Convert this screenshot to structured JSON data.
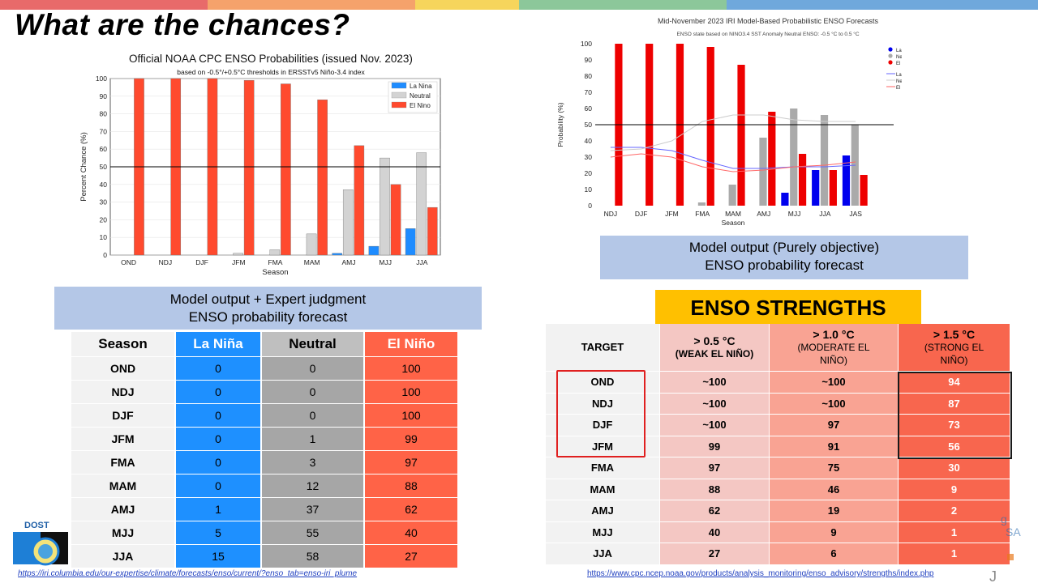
{
  "slide": {
    "title": "What are the chances?",
    "stripe_colors": [
      "#e86a6a",
      "#f5a26b",
      "#f6d55c",
      "#8cc79a",
      "#6fa8dc"
    ]
  },
  "cpc": {
    "caption_line1": "Model output + Expert judgment",
    "caption_line2": "ENSO probability forecast",
    "table_headers": [
      "Season",
      "La Niña",
      "Neutral",
      "El Niño"
    ],
    "rows": [
      [
        "OND",
        "0",
        "0",
        "100"
      ],
      [
        "NDJ",
        "0",
        "0",
        "100"
      ],
      [
        "DJF",
        "0",
        "0",
        "100"
      ],
      [
        "JFM",
        "0",
        "1",
        "99"
      ],
      [
        "FMA",
        "0",
        "3",
        "97"
      ],
      [
        "MAM",
        "0",
        "12",
        "88"
      ],
      [
        "AMJ",
        "1",
        "37",
        "62"
      ],
      [
        "MJJ",
        "5",
        "55",
        "40"
      ],
      [
        "JJA",
        "15",
        "58",
        "27"
      ]
    ],
    "link": "https://iri.columbia.edu/our-expertise/climate/forecasts/enso/current/?enso_tab=enso-iri_plume"
  },
  "iri": {
    "caption_line1": "Model output (Purely objective)",
    "caption_line2": "ENSO probability forecast"
  },
  "strengths": {
    "title": "ENSO STRENGTHS",
    "headers": [
      [
        "TARGET"
      ],
      [
        "> 0.5 °C",
        "(WEAK EL NIÑO)"
      ],
      [
        "> 1.0 °C",
        "(MODERATE EL",
        "NIÑO)"
      ],
      [
        "> 1.5 °C",
        "(STRONG EL",
        "NIÑO)"
      ]
    ],
    "rows": [
      [
        "OND",
        "~100",
        "~100",
        "94"
      ],
      [
        "NDJ",
        "~100",
        "~100",
        "87"
      ],
      [
        "DJF",
        "~100",
        "97",
        "73"
      ],
      [
        "JFM",
        "99",
        "91",
        "56"
      ],
      [
        "FMA",
        "97",
        "75",
        "30"
      ],
      [
        "MAM",
        "88",
        "46",
        "9"
      ],
      [
        "AMJ",
        "62",
        "19",
        "2"
      ],
      [
        "MJJ",
        "40",
        "9",
        "1"
      ],
      [
        "JJA",
        "27",
        "6",
        "1"
      ]
    ],
    "link": "https://www.cpc.ncep.noaa.gov/products/analysis_monitoring/enso_advisory/strengths/index.php"
  },
  "logos": {
    "dost_label": "DOST"
  },
  "chart_data": [
    {
      "type": "bar",
      "title": "Official NOAA CPC ENSO Probabilities (issued Nov. 2023)",
      "subtitle": "based on -0.5°/+0.5°C thresholds in ERSSTv5 Niño-3.4 index",
      "xlabel": "Season",
      "ylabel": "Percent Chance (%)",
      "ylim": [
        0,
        100
      ],
      "yticks": [
        0,
        10,
        20,
        30,
        40,
        50,
        60,
        70,
        80,
        90,
        100
      ],
      "reference_line": 50,
      "legend_position": "top-right",
      "categories": [
        "OND",
        "NDJ",
        "DJF",
        "JFM",
        "FMA",
        "MAM",
        "AMJ",
        "MJJ",
        "JJA"
      ],
      "series": [
        {
          "name": "La Nina",
          "color": "#1e8cff",
          "values": [
            0,
            0,
            0,
            0,
            0,
            0,
            1,
            5,
            15
          ]
        },
        {
          "name": "Neutral",
          "color": "#d3d3d3",
          "values": [
            0,
            0,
            0,
            1,
            3,
            12,
            37,
            55,
            58
          ]
        },
        {
          "name": "El Nino",
          "color": "#ff4a2e",
          "values": [
            100,
            100,
            100,
            99,
            97,
            88,
            62,
            40,
            27
          ]
        }
      ]
    },
    {
      "type": "bar",
      "title": "Mid-November 2023 IRI Model-Based Probabilistic ENSO Forecasts",
      "subtitle": "ENSO state based on NINO3.4 SST Anomaly Neutral ENSO: -0.5 °C to 0.5 °C",
      "xlabel": "Season",
      "ylabel": "Probability (%)",
      "ylim": [
        0,
        100
      ],
      "yticks": [
        0,
        10,
        20,
        30,
        40,
        50,
        60,
        70,
        80,
        90,
        100
      ],
      "reference_line": 50,
      "legend_position": "top-right",
      "categories": [
        "NDJ",
        "DJF",
        "JFM",
        "FMA",
        "MAM",
        "AMJ",
        "MJJ",
        "JJA",
        "JAS"
      ],
      "series": [
        {
          "name": "La Niña Forecast Probability",
          "color": "#0000ee",
          "values": [
            0,
            0,
            0,
            0,
            0,
            0,
            8,
            22,
            31
          ]
        },
        {
          "name": "Neutral Forecast Probability",
          "color": "#aaaaaa",
          "values": [
            0,
            0,
            0,
            2,
            13,
            42,
            60,
            56,
            50
          ]
        },
        {
          "name": "El Niño Forecast Probability",
          "color": "#ee0000",
          "values": [
            100,
            100,
            100,
            98,
            87,
            58,
            32,
            22,
            19
          ]
        }
      ],
      "climatology": [
        {
          "name": "La Niña Climatology",
          "color": "#6666ff",
          "values": [
            36,
            36,
            34,
            28,
            23,
            23,
            24,
            24,
            25
          ]
        },
        {
          "name": "Neutral Climatology",
          "color": "#cccccc",
          "values": [
            34,
            35,
            40,
            52,
            56,
            56,
            53,
            52,
            52
          ]
        },
        {
          "name": "El Niño Climatology",
          "color": "#ff6666",
          "values": [
            30,
            32,
            30,
            24,
            21,
            22,
            24,
            25,
            27
          ]
        }
      ]
    }
  ]
}
